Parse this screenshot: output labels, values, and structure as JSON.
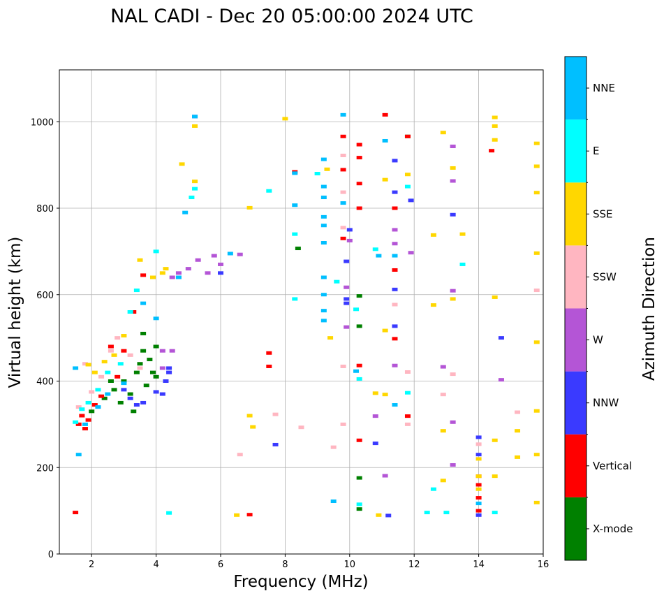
{
  "chart_data": {
    "type": "scatter",
    "title": "NAL CADI - Dec 20 05:00:00 2024 UTC",
    "xlabel": "Frequency (MHz)",
    "ylabel": "Virtual height (km)",
    "xlim": [
      1,
      16
    ],
    "ylim": [
      0,
      1120
    ],
    "xticks": [
      2,
      4,
      6,
      8,
      10,
      12,
      14,
      16
    ],
    "yticks": [
      0,
      200,
      400,
      600,
      800,
      1000
    ],
    "grid": true,
    "colorbar": {
      "label": "Azimuth Direction",
      "categories": [
        {
          "name": "X-mode",
          "color": "#008000"
        },
        {
          "name": "Vertical",
          "color": "#ff0000"
        },
        {
          "name": "NNW",
          "color": "#3a3aff"
        },
        {
          "name": "W",
          "color": "#b455d6"
        },
        {
          "name": "SSW",
          "color": "#ffb6c1"
        },
        {
          "name": "SSE",
          "color": "#ffd700"
        },
        {
          "name": "E",
          "color": "#00ffff"
        },
        {
          "name": "NNE",
          "color": "#00bfff"
        }
      ]
    },
    "series": [
      {
        "name": "X-mode",
        "points": [
          [
            2.0,
            330
          ],
          [
            2.4,
            360
          ],
          [
            2.7,
            380
          ],
          [
            2.9,
            350
          ],
          [
            3.0,
            400
          ],
          [
            3.2,
            370
          ],
          [
            3.4,
            420
          ],
          [
            3.5,
            440
          ],
          [
            3.6,
            470
          ],
          [
            3.7,
            390
          ],
          [
            3.8,
            450
          ],
          [
            3.9,
            420
          ],
          [
            4.0,
            410
          ],
          [
            4.0,
            480
          ],
          [
            3.3,
            330
          ],
          [
            2.6,
            400
          ],
          [
            3.6,
            510
          ],
          [
            8.4,
            707
          ],
          [
            10.3,
            597
          ],
          [
            10.3,
            527
          ],
          [
            10.3,
            176
          ],
          [
            10.3,
            104
          ],
          [
            11.8,
            966
          ]
        ]
      },
      {
        "name": "Vertical",
        "points": [
          [
            1.5,
            96
          ],
          [
            1.6,
            300
          ],
          [
            1.7,
            320
          ],
          [
            1.8,
            290
          ],
          [
            1.9,
            310
          ],
          [
            2.1,
            345
          ],
          [
            2.3,
            365
          ],
          [
            2.6,
            480
          ],
          [
            2.8,
            410
          ],
          [
            3.0,
            470
          ],
          [
            3.3,
            560
          ],
          [
            3.6,
            645
          ],
          [
            6.9,
            91
          ],
          [
            7.5,
            465
          ],
          [
            7.5,
            434
          ],
          [
            8.3,
            884
          ],
          [
            9.8,
            966
          ],
          [
            9.8,
            889
          ],
          [
            9.8,
            730
          ],
          [
            10.3,
            947
          ],
          [
            10.3,
            917
          ],
          [
            10.3,
            857
          ],
          [
            10.3,
            800
          ],
          [
            10.3,
            436
          ],
          [
            10.3,
            263
          ],
          [
            11.1,
            1016
          ],
          [
            11.4,
            800
          ],
          [
            11.4,
            657
          ],
          [
            11.4,
            498
          ],
          [
            11.8,
            966
          ],
          [
            11.8,
            319
          ],
          [
            14.0,
            100
          ],
          [
            14.0,
            130
          ],
          [
            14.0,
            160
          ],
          [
            14.0,
            180
          ],
          [
            14.4,
            933
          ]
        ]
      },
      {
        "name": "NNW",
        "points": [
          [
            3.0,
            380
          ],
          [
            3.2,
            360
          ],
          [
            3.4,
            345
          ],
          [
            3.6,
            350
          ],
          [
            4.0,
            375
          ],
          [
            4.2,
            370
          ],
          [
            4.3,
            400
          ],
          [
            4.4,
            420
          ],
          [
            4.4,
            430
          ],
          [
            5.2,
            1012
          ],
          [
            6.0,
            650
          ],
          [
            7.7,
            253
          ],
          [
            9.9,
            677
          ],
          [
            9.9,
            590
          ],
          [
            9.9,
            580
          ],
          [
            10.0,
            750
          ],
          [
            10.8,
            256
          ],
          [
            11.2,
            89
          ],
          [
            11.4,
            910
          ],
          [
            11.4,
            837
          ],
          [
            11.4,
            612
          ],
          [
            11.4,
            527
          ],
          [
            11.9,
            818
          ],
          [
            13.2,
            785
          ],
          [
            14.0,
            270
          ],
          [
            14.0,
            230
          ],
          [
            14.7,
            500
          ],
          [
            14.0,
            90
          ]
        ]
      },
      {
        "name": "W",
        "points": [
          [
            4.2,
            430
          ],
          [
            4.2,
            470
          ],
          [
            4.5,
            470
          ],
          [
            4.5,
            640
          ],
          [
            4.7,
            650
          ],
          [
            5.0,
            660
          ],
          [
            5.3,
            680
          ],
          [
            5.6,
            650
          ],
          [
            5.8,
            690
          ],
          [
            6.0,
            670
          ],
          [
            6.6,
            693
          ],
          [
            9.9,
            617
          ],
          [
            9.9,
            525
          ],
          [
            10.0,
            725
          ],
          [
            10.8,
            319
          ],
          [
            11.1,
            181
          ],
          [
            11.4,
            750
          ],
          [
            11.4,
            718
          ],
          [
            11.4,
            436
          ],
          [
            11.9,
            697
          ],
          [
            12.9,
            433
          ],
          [
            13.2,
            943
          ],
          [
            13.2,
            863
          ],
          [
            13.2,
            609
          ],
          [
            13.2,
            305
          ],
          [
            13.2,
            206
          ],
          [
            14.7,
            403
          ]
        ]
      },
      {
        "name": "SSW",
        "points": [
          [
            1.6,
            340
          ],
          [
            1.8,
            440
          ],
          [
            2.0,
            375
          ],
          [
            2.3,
            410
          ],
          [
            2.6,
            470
          ],
          [
            2.8,
            500
          ],
          [
            3.2,
            460
          ],
          [
            3.5,
            430
          ],
          [
            6.6,
            230
          ],
          [
            7.7,
            323
          ],
          [
            8.5,
            293
          ],
          [
            9.5,
            247
          ],
          [
            9.8,
            922
          ],
          [
            9.8,
            837
          ],
          [
            9.8,
            755
          ],
          [
            9.8,
            434
          ],
          [
            9.8,
            300
          ],
          [
            11.4,
            577
          ],
          [
            11.8,
            421
          ],
          [
            11.8,
            300
          ],
          [
            12.9,
            369
          ],
          [
            13.2,
            416
          ],
          [
            14.0,
            254
          ],
          [
            15.2,
            328
          ],
          [
            15.8,
            610
          ]
        ]
      },
      {
        "name": "SSE",
        "points": [
          [
            1.9,
            438
          ],
          [
            2.1,
            420
          ],
          [
            2.4,
            445
          ],
          [
            2.7,
            460
          ],
          [
            3.0,
            505
          ],
          [
            3.5,
            680
          ],
          [
            3.9,
            640
          ],
          [
            4.2,
            650
          ],
          [
            4.3,
            660
          ],
          [
            4.8,
            902
          ],
          [
            5.2,
            862
          ],
          [
            5.2,
            990
          ],
          [
            6.5,
            90
          ],
          [
            6.9,
            801
          ],
          [
            6.9,
            320
          ],
          [
            7.0,
            294
          ],
          [
            8.0,
            1007
          ],
          [
            9.3,
            890
          ],
          [
            9.4,
            500
          ],
          [
            10.8,
            372
          ],
          [
            10.9,
            90
          ],
          [
            11.1,
            866
          ],
          [
            11.1,
            517
          ],
          [
            11.1,
            369
          ],
          [
            11.8,
            878
          ],
          [
            12.6,
            738
          ],
          [
            12.6,
            576
          ],
          [
            12.9,
            975
          ],
          [
            12.9,
            285
          ],
          [
            12.9,
            170
          ],
          [
            13.2,
            893
          ],
          [
            13.2,
            590
          ],
          [
            13.5,
            740
          ],
          [
            14.0,
            220
          ],
          [
            14.0,
            180
          ],
          [
            14.0,
            150
          ],
          [
            14.5,
            1010
          ],
          [
            14.5,
            990
          ],
          [
            14.5,
            958
          ],
          [
            14.5,
            594
          ],
          [
            14.5,
            263
          ],
          [
            14.5,
            180
          ],
          [
            15.2,
            285
          ],
          [
            15.2,
            224
          ],
          [
            15.8,
            950
          ],
          [
            15.8,
            897
          ],
          [
            15.8,
            836
          ],
          [
            15.8,
            696
          ],
          [
            15.8,
            490
          ],
          [
            15.8,
            331
          ],
          [
            15.8,
            230
          ],
          [
            15.8,
            119
          ]
        ]
      },
      {
        "name": "E",
        "points": [
          [
            1.5,
            305
          ],
          [
            1.7,
            335
          ],
          [
            1.9,
            350
          ],
          [
            2.2,
            380
          ],
          [
            2.5,
            420
          ],
          [
            2.9,
            440
          ],
          [
            3.2,
            560
          ],
          [
            3.4,
            610
          ],
          [
            4.0,
            700
          ],
          [
            4.4,
            95
          ],
          [
            5.2,
            845
          ],
          [
            5.1,
            825
          ],
          [
            7.5,
            840
          ],
          [
            8.3,
            740
          ],
          [
            8.3,
            590
          ],
          [
            9.0,
            880
          ],
          [
            9.6,
            630
          ],
          [
            10.2,
            566
          ],
          [
            10.3,
            405
          ],
          [
            10.3,
            115
          ],
          [
            10.8,
            705
          ],
          [
            11.8,
            850
          ],
          [
            11.8,
            373
          ],
          [
            12.4,
            96
          ],
          [
            12.6,
            150
          ],
          [
            13.0,
            96
          ],
          [
            13.5,
            670
          ],
          [
            14.5,
            96
          ]
        ]
      },
      {
        "name": "NNE",
        "points": [
          [
            1.5,
            430
          ],
          [
            1.6,
            230
          ],
          [
            1.8,
            300
          ],
          [
            2.2,
            340
          ],
          [
            2.5,
            370
          ],
          [
            3.0,
            395
          ],
          [
            3.6,
            580
          ],
          [
            4.0,
            545
          ],
          [
            4.7,
            640
          ],
          [
            4.9,
            790
          ],
          [
            5.2,
            1012
          ],
          [
            6.3,
            695
          ],
          [
            8.3,
            807
          ],
          [
            8.3,
            881
          ],
          [
            9.2,
            913
          ],
          [
            9.2,
            850
          ],
          [
            9.2,
            825
          ],
          [
            9.2,
            780
          ],
          [
            9.2,
            760
          ],
          [
            9.2,
            720
          ],
          [
            9.2,
            640
          ],
          [
            9.2,
            600
          ],
          [
            9.2,
            563
          ],
          [
            9.2,
            540
          ],
          [
            9.5,
            122
          ],
          [
            9.8,
            812
          ],
          [
            9.8,
            1016
          ],
          [
            10.2,
            423
          ],
          [
            10.9,
            690
          ],
          [
            11.1,
            956
          ],
          [
            11.4,
            345
          ],
          [
            11.4,
            690
          ],
          [
            14.0,
            117
          ]
        ]
      }
    ]
  }
}
